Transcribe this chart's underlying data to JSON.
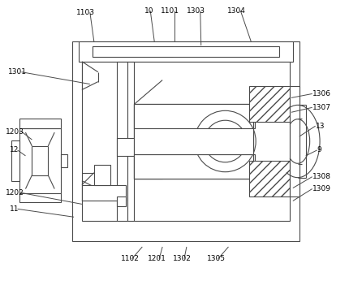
{
  "bg_color": "#ffffff",
  "line_color": "#4a4a4a",
  "lw": 0.8,
  "fig_w": 4.3,
  "fig_h": 3.51,
  "dpi": 100
}
